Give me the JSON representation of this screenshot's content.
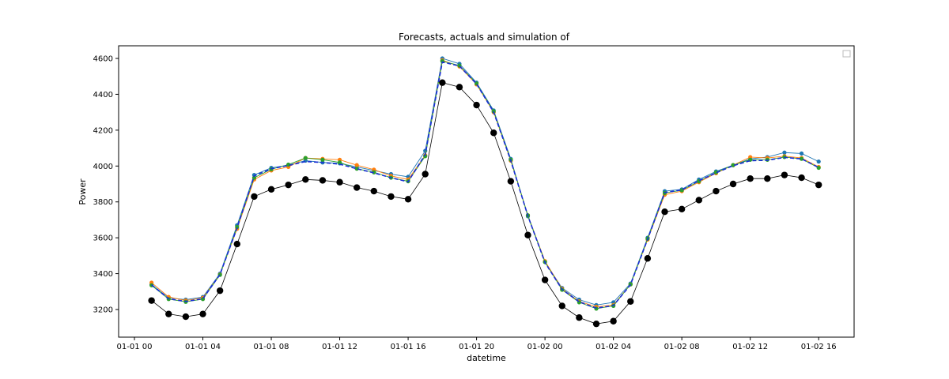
{
  "chart_data": {
    "type": "line",
    "title": "Forecasts, actuals and simulation of",
    "xlabel": "datetime",
    "ylabel": "Power",
    "x_start": "2023-01-01 01:00",
    "x_step_hours": 1,
    "x_ticks": [
      "01-01 00",
      "01-01 04",
      "01-01 08",
      "01-01 12",
      "01-01 16",
      "01-01 20",
      "01-02 00",
      "01-02 04",
      "01-02 08",
      "01-02 12",
      "01-02 16"
    ],
    "y_ticks": [
      3200,
      3400,
      3600,
      3800,
      4000,
      4200,
      4400,
      4600
    ],
    "ylim": [
      3120,
      4640
    ],
    "grid": false,
    "legend": "top-right (empty)",
    "series": [
      {
        "color": "#1f77b4",
        "marker": "dot",
        "values": [
          3340,
          3265,
          3255,
          3270,
          3400,
          3670,
          3950,
          3990,
          4005,
          4030,
          4020,
          4015,
          3995,
          3975,
          3955,
          3940,
          4085,
          4600,
          4570,
          4465,
          4310,
          4040,
          3720,
          3465,
          3320,
          3255,
          3225,
          3240,
          3345,
          3600,
          3860,
          3870,
          3925,
          3970,
          4005,
          4040,
          4050,
          4075,
          4070,
          4025
        ]
      },
      {
        "color": "#ff7f0e",
        "marker": "dot",
        "values": [
          3350,
          3270,
          3250,
          3265,
          3395,
          3650,
          3925,
          3975,
          3995,
          4045,
          4040,
          4035,
          4005,
          3980,
          3945,
          3925,
          4060,
          4590,
          4555,
          4455,
          4300,
          4030,
          3725,
          3470,
          3315,
          3245,
          3215,
          3225,
          3340,
          3590,
          3840,
          3860,
          3910,
          3960,
          4005,
          4050,
          4045,
          4055,
          4045,
          3995
        ]
      },
      {
        "color": "#2ca02c",
        "marker": "dot",
        "values": [
          3335,
          3258,
          3243,
          3258,
          3393,
          3660,
          3935,
          3982,
          4008,
          4045,
          4035,
          4020,
          3985,
          3965,
          3935,
          3915,
          4055,
          4585,
          4560,
          4460,
          4305,
          4035,
          3725,
          3465,
          3310,
          3240,
          3205,
          3220,
          3340,
          3595,
          3850,
          3865,
          3915,
          3965,
          4005,
          4035,
          4035,
          4050,
          4040,
          3990
        ]
      },
      {
        "color": "#1a2fd6",
        "marker": "dashed",
        "values": [
          3338,
          3260,
          3245,
          3260,
          3395,
          3655,
          3945,
          3985,
          4003,
          4025,
          4020,
          4010,
          3985,
          3962,
          3935,
          3912,
          4065,
          4580,
          4558,
          4458,
          4300,
          4030,
          3722,
          3462,
          3312,
          3243,
          3208,
          3222,
          3338,
          3592,
          3852,
          3867,
          3918,
          3962,
          4002,
          4030,
          4032,
          4048,
          4040,
          3992
        ]
      },
      {
        "color": "#000000",
        "marker": "big-dot",
        "values": [
          3250,
          3175,
          3160,
          3175,
          3305,
          3565,
          3830,
          3870,
          3895,
          3925,
          3920,
          3910,
          3880,
          3860,
          3830,
          3815,
          3955,
          4465,
          4440,
          4340,
          4185,
          3915,
          3615,
          3365,
          3220,
          3155,
          3120,
          3135,
          3245,
          3485,
          3745,
          3760,
          3810,
          3860,
          3900,
          3930,
          3930,
          3950,
          3935,
          3895
        ]
      }
    ]
  }
}
